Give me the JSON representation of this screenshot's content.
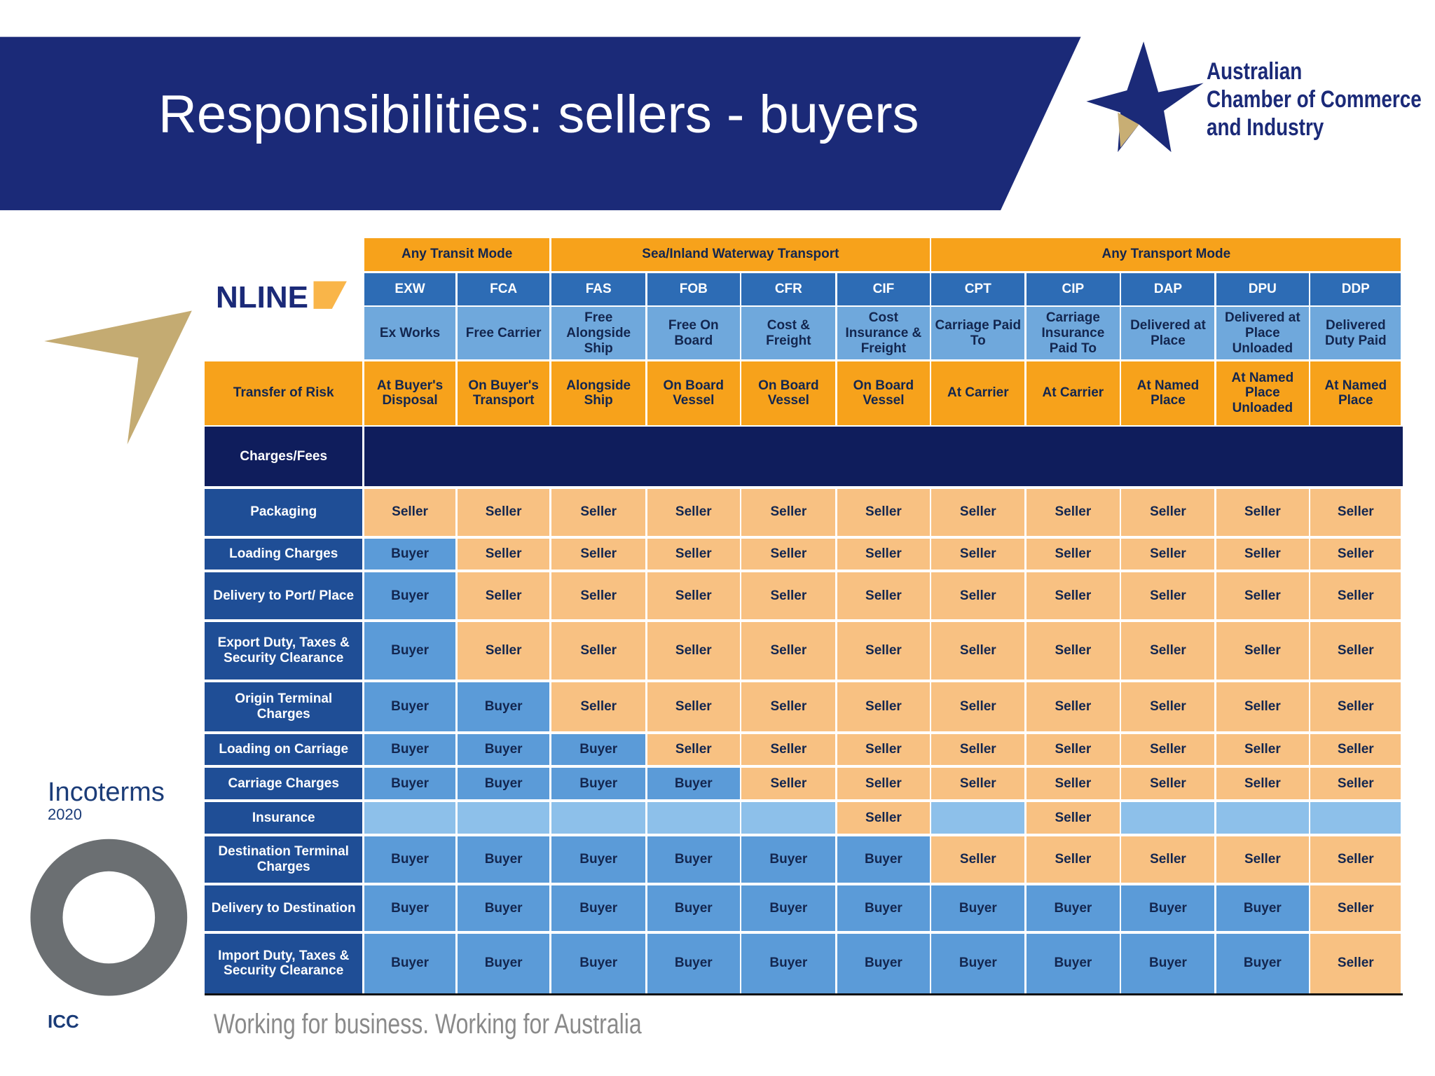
{
  "header": {
    "title": "Responsibilities: sellers - buyers"
  },
  "logo": {
    "lines": [
      "Australian",
      "Chamber of Commerce",
      "and Industry"
    ]
  },
  "brand": "NLINE",
  "book": {
    "title": "Incoterms",
    "year": "2020",
    "publisher": "ICC"
  },
  "footer": "Working for business. Working for Australia",
  "table": {
    "risk_label": "Transfer of Risk",
    "charges_label": "Charges/Fees",
    "groups": [
      {
        "label": "Any Transit Mode",
        "terms": [
          {
            "code": "EXW",
            "name": "Ex Works",
            "risk": "At Buyer's Disposal"
          },
          {
            "code": "FCA",
            "name": "Free Carrier",
            "risk": "On Buyer's Transport"
          }
        ]
      },
      {
        "label": "Sea/Inland Waterway Transport",
        "terms": [
          {
            "code": "FAS",
            "name": "Free Alongside Ship",
            "risk": "Alongside Ship"
          },
          {
            "code": "FOB",
            "name": "Free On Board",
            "risk": "On Board Vessel"
          },
          {
            "code": "CFR",
            "name": "Cost & Freight",
            "risk": "On Board Vessel"
          },
          {
            "code": "CIF",
            "name": "Cost Insurance & Freight",
            "risk": "On Board Vessel"
          }
        ]
      },
      {
        "label": "Any Transport Mode",
        "terms": [
          {
            "code": "CPT",
            "name": "Carriage Paid To",
            "risk": "At Carrier"
          },
          {
            "code": "CIP",
            "name": "Carriage Insurance Paid To",
            "risk": "At Carrier"
          },
          {
            "code": "DAP",
            "name": "Delivered at Place",
            "risk": "At Named Place"
          },
          {
            "code": "DPU",
            "name": "Delivered at Place Unloaded",
            "risk": "At Named Place Unloaded"
          },
          {
            "code": "DDP",
            "name": "Delivered Duty Paid",
            "risk": "At Named Place"
          }
        ]
      }
    ],
    "rows": [
      {
        "label": "Packaging",
        "cells": [
          "Seller",
          "Seller",
          "Seller",
          "Seller",
          "Seller",
          "Seller",
          "Seller",
          "Seller",
          "Seller",
          "Seller",
          "Seller"
        ]
      },
      {
        "label": "Loading Charges",
        "cells": [
          "Buyer",
          "Seller",
          "Seller",
          "Seller",
          "Seller",
          "Seller",
          "Seller",
          "Seller",
          "Seller",
          "Seller",
          "Seller"
        ]
      },
      {
        "label": "Delivery to Port/ Place",
        "cells": [
          "Buyer",
          "Seller",
          "Seller",
          "Seller",
          "Seller",
          "Seller",
          "Seller",
          "Seller",
          "Seller",
          "Seller",
          "Seller"
        ]
      },
      {
        "label": "Export Duty, Taxes & Security Clearance",
        "cells": [
          "Buyer",
          "Seller",
          "Seller",
          "Seller",
          "Seller",
          "Seller",
          "Seller",
          "Seller",
          "Seller",
          "Seller",
          "Seller"
        ]
      },
      {
        "label": "Origin Terminal Charges",
        "cells": [
          "Buyer",
          "Buyer",
          "Seller",
          "Seller",
          "Seller",
          "Seller",
          "Seller",
          "Seller",
          "Seller",
          "Seller",
          "Seller"
        ]
      },
      {
        "label": "Loading on Carriage",
        "cells": [
          "Buyer",
          "Buyer",
          "Buyer",
          "Seller",
          "Seller",
          "Seller",
          "Seller",
          "Seller",
          "Seller",
          "Seller",
          "Seller"
        ]
      },
      {
        "label": "Carriage Charges",
        "cells": [
          "Buyer",
          "Buyer",
          "Buyer",
          "Buyer",
          "Seller",
          "Seller",
          "Seller",
          "Seller",
          "Seller",
          "Seller",
          "Seller"
        ]
      },
      {
        "label": "Insurance",
        "cells": [
          null,
          null,
          null,
          null,
          null,
          "Seller",
          null,
          "Seller",
          null,
          null,
          null
        ]
      },
      {
        "label": "Destination Terminal Charges",
        "cells": [
          "Buyer",
          "Buyer",
          "Buyer",
          "Buyer",
          "Buyer",
          "Buyer",
          "Seller",
          "Seller",
          "Seller",
          "Seller",
          "Seller"
        ]
      },
      {
        "label": "Delivery to Destination",
        "cells": [
          "Buyer",
          "Buyer",
          "Buyer",
          "Buyer",
          "Buyer",
          "Buyer",
          "Buyer",
          "Buyer",
          "Buyer",
          "Buyer",
          "Seller"
        ]
      },
      {
        "label": "Import Duty, Taxes & Security Clearance",
        "cells": [
          "Buyer",
          "Buyer",
          "Buyer",
          "Buyer",
          "Buyer",
          "Buyer",
          "Buyer",
          "Buyer",
          "Buyer",
          "Buyer",
          "Seller"
        ]
      }
    ]
  }
}
